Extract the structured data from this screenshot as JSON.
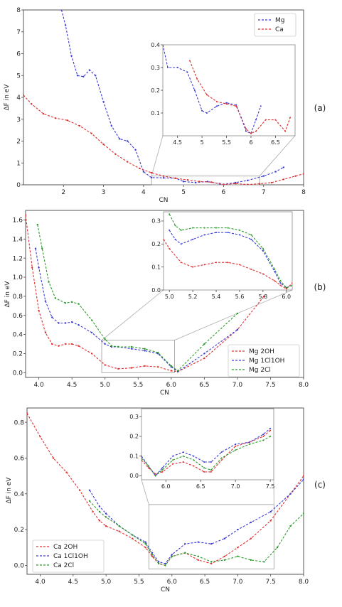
{
  "chart_data": [
    {
      "type": "line",
      "panel_label": "(a)",
      "xlabel": "CN",
      "ylabel": "ΔF in eV",
      "xlim": [
        1,
        8
      ],
      "ylim": [
        0,
        8
      ],
      "xticks": [
        2,
        3,
        4,
        5,
        6,
        7,
        8
      ],
      "yticks": [
        0,
        1,
        2,
        3,
        4,
        5,
        6,
        7,
        8
      ],
      "legend": "top-right",
      "series": [
        {
          "name": "Mg",
          "color": "#3b3bd6",
          "x": [
            1.95,
            2.05,
            2.2,
            2.35,
            2.5,
            2.65,
            2.8,
            3.0,
            3.2,
            3.4,
            3.6,
            3.8,
            4.0,
            4.2,
            4.5,
            4.8,
            5.0,
            5.3,
            5.6,
            5.9,
            6.0,
            6.3,
            6.6,
            7.0,
            7.3,
            7.5
          ],
          "y": [
            8.0,
            7.3,
            5.9,
            5.0,
            4.95,
            5.25,
            5.0,
            3.8,
            2.7,
            2.1,
            2.0,
            1.6,
            0.6,
            0.33,
            0.32,
            0.3,
            0.15,
            0.1,
            0.15,
            0.05,
            0.02,
            0.1,
            0.2,
            0.4,
            0.6,
            0.8
          ]
        },
        {
          "name": "Ca",
          "color": "#e03030",
          "x": [
            1.0,
            1.2,
            1.5,
            1.8,
            2.1,
            2.4,
            2.7,
            3.0,
            3.3,
            3.6,
            3.9,
            4.2,
            4.5,
            4.8,
            5.1,
            5.4,
            5.7,
            6.0,
            6.3,
            6.6,
            6.9,
            7.2,
            7.5,
            7.8,
            8.0
          ],
          "y": [
            4.1,
            3.7,
            3.25,
            3.05,
            2.95,
            2.7,
            2.35,
            1.85,
            1.4,
            1.05,
            0.75,
            0.55,
            0.4,
            0.3,
            0.22,
            0.15,
            0.12,
            0.01,
            0.06,
            0.01,
            0.05,
            0.1,
            0.25,
            0.4,
            0.5
          ]
        }
      ],
      "inset": {
        "xlim": [
          4.2,
          6.9
        ],
        "ylim": [
          0,
          0.4
        ],
        "xticks": [
          4.5,
          5.0,
          5.5,
          6.0,
          6.5
        ],
        "yticks": [
          0.1,
          0.2,
          0.3,
          0.4
        ],
        "series": [
          {
            "name": "Mg",
            "color": "#3b3bd6",
            "x": [
              4.2,
              4.3,
              4.5,
              4.7,
              4.85,
              5.0,
              5.1,
              5.3,
              5.5,
              5.7,
              5.8,
              5.9,
              6.0,
              6.1,
              6.2
            ],
            "y": [
              0.4,
              0.3,
              0.3,
              0.28,
              0.2,
              0.11,
              0.1,
              0.13,
              0.145,
              0.135,
              0.08,
              0.02,
              0.01,
              0.07,
              0.13
            ]
          },
          {
            "name": "Ca",
            "color": "#e03030",
            "x": [
              4.75,
              4.9,
              5.1,
              5.3,
              5.5,
              5.7,
              5.9,
              6.0,
              6.1,
              6.3,
              6.5,
              6.7,
              6.8
            ],
            "y": [
              0.33,
              0.25,
              0.18,
              0.15,
              0.14,
              0.13,
              0.03,
              0.01,
              0.02,
              0.07,
              0.07,
              0.02,
              0.08
            ]
          }
        ]
      }
    },
    {
      "type": "line",
      "panel_label": "(b)",
      "xlabel": "CN",
      "ylabel": "ΔF in eV",
      "xlim": [
        3.8,
        8.0
      ],
      "ylim": [
        -0.05,
        1.7
      ],
      "xticks": [
        4.0,
        4.5,
        5.0,
        5.5,
        6.0,
        6.5,
        7.0,
        7.5,
        8.0
      ],
      "xtick_labels": [
        "4.0",
        "4.5",
        "5.0",
        "5.5",
        "6.0",
        "6.5",
        "7.0",
        "7.5",
        "8.0"
      ],
      "yticks": [
        0.0,
        0.2,
        0.4,
        0.6,
        0.8,
        1.0,
        1.2,
        1.4,
        1.6
      ],
      "ytick_labels": [
        "0.0",
        "0.2",
        "0.4",
        "0.6",
        "0.8",
        "1.0",
        "1.2",
        "1.4",
        "1.6"
      ],
      "legend": "bottom-right",
      "series": [
        {
          "name": "Mg 2OH",
          "color": "#e03030",
          "x": [
            3.8,
            3.9,
            4.0,
            4.1,
            4.2,
            4.3,
            4.4,
            4.5,
            4.6,
            4.8,
            5.0,
            5.2,
            5.4,
            5.6,
            5.8,
            6.0,
            6.1,
            6.5,
            7.0,
            7.4
          ],
          "y": [
            1.65,
            1.1,
            0.65,
            0.42,
            0.3,
            0.28,
            0.3,
            0.3,
            0.28,
            0.2,
            0.08,
            0.04,
            0.05,
            0.07,
            0.06,
            0.02,
            0.01,
            0.15,
            0.45,
            0.8
          ]
        },
        {
          "name": "Mg 1Cl1OH",
          "color": "#3b3bd6",
          "x": [
            3.95,
            4.0,
            4.1,
            4.2,
            4.3,
            4.4,
            4.5,
            4.6,
            4.8,
            5.0,
            5.1,
            5.2,
            5.4,
            5.6,
            5.8,
            6.0,
            6.1,
            6.5,
            7.0
          ],
          "y": [
            1.3,
            1.1,
            0.75,
            0.58,
            0.52,
            0.52,
            0.53,
            0.5,
            0.42,
            0.3,
            0.27,
            0.27,
            0.25,
            0.23,
            0.2,
            0.06,
            0.01,
            0.2,
            0.45
          ]
        },
        {
          "name": "Mg 2Cl",
          "color": "#2a9a2a",
          "x": [
            3.98,
            4.05,
            4.15,
            4.25,
            4.4,
            4.5,
            4.6,
            4.8,
            5.0,
            5.1,
            5.2,
            5.4,
            5.6,
            5.8,
            6.0,
            6.1,
            6.5,
            7.0
          ],
          "y": [
            1.55,
            1.3,
            0.95,
            0.78,
            0.73,
            0.74,
            0.72,
            0.55,
            0.35,
            0.28,
            0.27,
            0.27,
            0.25,
            0.21,
            0.07,
            0.02,
            0.3,
            0.62
          ]
        }
      ],
      "inset": {
        "xlim": [
          4.95,
          6.05
        ],
        "ylim": [
          0.0,
          0.34
        ],
        "xticks": [
          5.0,
          5.2,
          5.4,
          5.6,
          5.8,
          6.0
        ],
        "xtick_labels": [
          "5.0",
          "5.2",
          "5.4",
          "5.6",
          "5.8",
          "6.0"
        ],
        "yticks": [
          0.0,
          0.1,
          0.2,
          0.3
        ],
        "ytick_labels": [
          "0.0",
          "0.1",
          "0.2",
          "0.3"
        ],
        "series": [
          {
            "name": "Mg 2OH",
            "color": "#e03030",
            "x": [
              4.95,
              5.0,
              5.1,
              5.2,
              5.3,
              5.4,
              5.5,
              5.6,
              5.7,
              5.8,
              5.9,
              5.95,
              6.0,
              6.05
            ],
            "y": [
              0.22,
              0.18,
              0.12,
              0.1,
              0.11,
              0.12,
              0.12,
              0.11,
              0.09,
              0.07,
              0.04,
              0.02,
              0.005,
              0.03
            ]
          },
          {
            "name": "Mg 1Cl1OH",
            "color": "#3b3bd6",
            "x": [
              5.0,
              5.05,
              5.1,
              5.2,
              5.3,
              5.4,
              5.5,
              5.6,
              5.7,
              5.8,
              5.9,
              5.95,
              6.0,
              6.05
            ],
            "y": [
              0.26,
              0.22,
              0.2,
              0.22,
              0.24,
              0.25,
              0.25,
              0.24,
              0.22,
              0.17,
              0.08,
              0.03,
              0.01,
              0.02
            ]
          },
          {
            "name": "Mg 2Cl",
            "color": "#2a9a2a",
            "x": [
              5.0,
              5.05,
              5.1,
              5.2,
              5.3,
              5.4,
              5.5,
              5.6,
              5.7,
              5.8,
              5.9,
              5.95,
              6.0,
              6.05
            ],
            "y": [
              0.33,
              0.28,
              0.26,
              0.27,
              0.27,
              0.27,
              0.27,
              0.26,
              0.24,
              0.18,
              0.09,
              0.04,
              0.01,
              0.02
            ]
          }
        ]
      }
    },
    {
      "type": "line",
      "panel_label": "(c)",
      "xlabel": "CN",
      "ylabel": "ΔF in eV",
      "xlim": [
        3.8,
        8.0
      ],
      "ylim": [
        -0.05,
        0.88
      ],
      "xticks": [
        4.0,
        4.5,
        5.0,
        5.5,
        6.0,
        6.5,
        7.0,
        7.5,
        8.0
      ],
      "xtick_labels": [
        "4.0",
        "4.5",
        "5.0",
        "5.5",
        "6.0",
        "6.5",
        "7.0",
        "7.5",
        "8.0"
      ],
      "yticks": [
        0.0,
        0.2,
        0.4,
        0.6,
        0.8
      ],
      "ytick_labels": [
        "0.0",
        "0.2",
        "0.4",
        "0.6",
        "0.8"
      ],
      "legend": "bottom-left",
      "series": [
        {
          "name": "Ca 2OH",
          "color": "#e03030",
          "x": [
            3.8,
            4.0,
            4.2,
            4.4,
            4.6,
            4.8,
            4.9,
            5.0,
            5.2,
            5.4,
            5.6,
            5.7,
            5.8,
            5.9,
            6.0,
            6.2,
            6.4,
            6.6,
            6.8,
            7.0,
            7.2,
            7.5,
            7.8,
            8.0
          ],
          "y": [
            0.85,
            0.72,
            0.6,
            0.52,
            0.42,
            0.3,
            0.25,
            0.22,
            0.19,
            0.15,
            0.1,
            0.05,
            0.01,
            0.0,
            0.05,
            0.07,
            0.03,
            0.01,
            0.05,
            0.1,
            0.15,
            0.25,
            0.4,
            0.5
          ]
        },
        {
          "name": "Ca 1Cl1OH",
          "color": "#3b3bd6",
          "x": [
            4.75,
            4.9,
            5.0,
            5.2,
            5.4,
            5.6,
            5.7,
            5.8,
            5.9,
            6.0,
            6.2,
            6.4,
            6.6,
            6.8,
            7.0,
            7.2,
            7.5,
            7.8,
            8.0
          ],
          "y": [
            0.42,
            0.33,
            0.29,
            0.22,
            0.17,
            0.13,
            0.07,
            0.02,
            0.01,
            0.06,
            0.12,
            0.13,
            0.12,
            0.15,
            0.2,
            0.24,
            0.3,
            0.4,
            0.48
          ]
        },
        {
          "name": "Ca 2Cl",
          "color": "#2a9a2a",
          "x": [
            4.75,
            4.9,
            5.0,
            5.2,
            5.4,
            5.6,
            5.7,
            5.8,
            5.9,
            6.0,
            6.2,
            6.4,
            6.6,
            6.8,
            7.0,
            7.2,
            7.4,
            7.6,
            7.8,
            8.0
          ],
          "y": [
            0.36,
            0.3,
            0.27,
            0.22,
            0.17,
            0.12,
            0.06,
            0.01,
            0.0,
            0.05,
            0.07,
            0.05,
            0.02,
            0.03,
            0.05,
            0.03,
            0.02,
            0.1,
            0.22,
            0.29
          ]
        }
      ],
      "inset": {
        "xlim": [
          5.65,
          7.55
        ],
        "ylim": [
          -0.02,
          0.34
        ],
        "xticks": [
          6.0,
          6.5,
          7.0,
          7.5
        ],
        "xtick_labels": [
          "6.0",
          "6.5",
          "7.0",
          "7.5"
        ],
        "yticks": [
          0.0,
          0.1,
          0.2,
          0.3
        ],
        "ytick_labels": [
          "0.0",
          "0.1",
          "0.2",
          "0.3"
        ],
        "series": [
          {
            "name": "Ca 2OH",
            "color": "#e03030",
            "x": [
              5.65,
              5.75,
              5.85,
              5.95,
              6.1,
              6.25,
              6.4,
              6.55,
              6.65,
              6.8,
              7.0,
              7.2,
              7.4,
              7.5
            ],
            "y": [
              0.08,
              0.04,
              0.01,
              0.02,
              0.06,
              0.07,
              0.05,
              0.02,
              0.02,
              0.08,
              0.15,
              0.17,
              0.2,
              0.23
            ]
          },
          {
            "name": "Ca 1Cl1OH",
            "color": "#3b3bd6",
            "x": [
              5.65,
              5.75,
              5.85,
              5.95,
              6.1,
              6.25,
              6.4,
              6.55,
              6.65,
              6.8,
              7.0,
              7.2,
              7.4,
              7.5
            ],
            "y": [
              0.1,
              0.05,
              0.0,
              0.04,
              0.1,
              0.12,
              0.1,
              0.07,
              0.07,
              0.12,
              0.16,
              0.17,
              0.21,
              0.24
            ]
          },
          {
            "name": "Ca 2Cl",
            "color": "#2a9a2a",
            "x": [
              5.65,
              5.75,
              5.85,
              5.95,
              6.1,
              6.25,
              6.4,
              6.55,
              6.65,
              6.8,
              7.0,
              7.2,
              7.4,
              7.5
            ],
            "y": [
              0.09,
              0.05,
              0.0,
              0.03,
              0.08,
              0.1,
              0.08,
              0.04,
              0.03,
              0.09,
              0.13,
              0.16,
              0.18,
              0.2
            ]
          }
        ]
      }
    }
  ]
}
